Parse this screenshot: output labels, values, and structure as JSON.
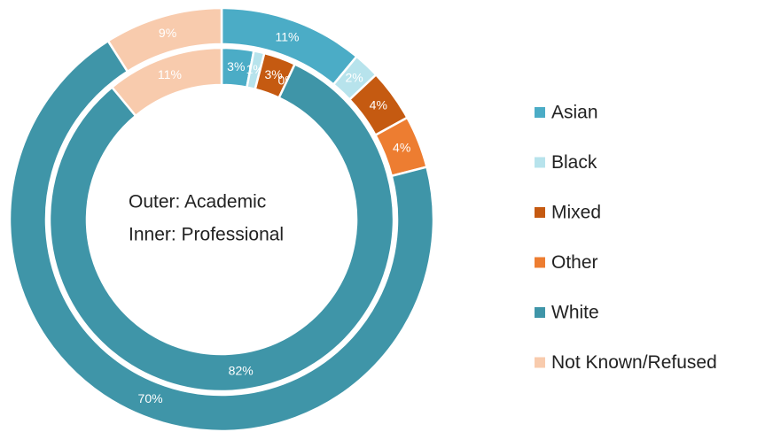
{
  "chart_data": {
    "type": "nested-donut",
    "annotations": [
      "Outer: Academic",
      "Inner: Professional"
    ],
    "categories": [
      "Asian",
      "Black",
      "Mixed",
      "Other",
      "White",
      "Not Known/Refused"
    ],
    "colors": [
      "#4bacc6",
      "#b7e3ec",
      "#c55a11",
      "#ed7d31",
      "#3f95a8",
      "#f8cbad"
    ],
    "series": [
      {
        "values": [
          11,
          2,
          4,
          4,
          70,
          9
        ]
      },
      {
        "values": [
          3,
          1,
          3,
          0,
          82,
          11
        ]
      }
    ],
    "legend": "right"
  }
}
